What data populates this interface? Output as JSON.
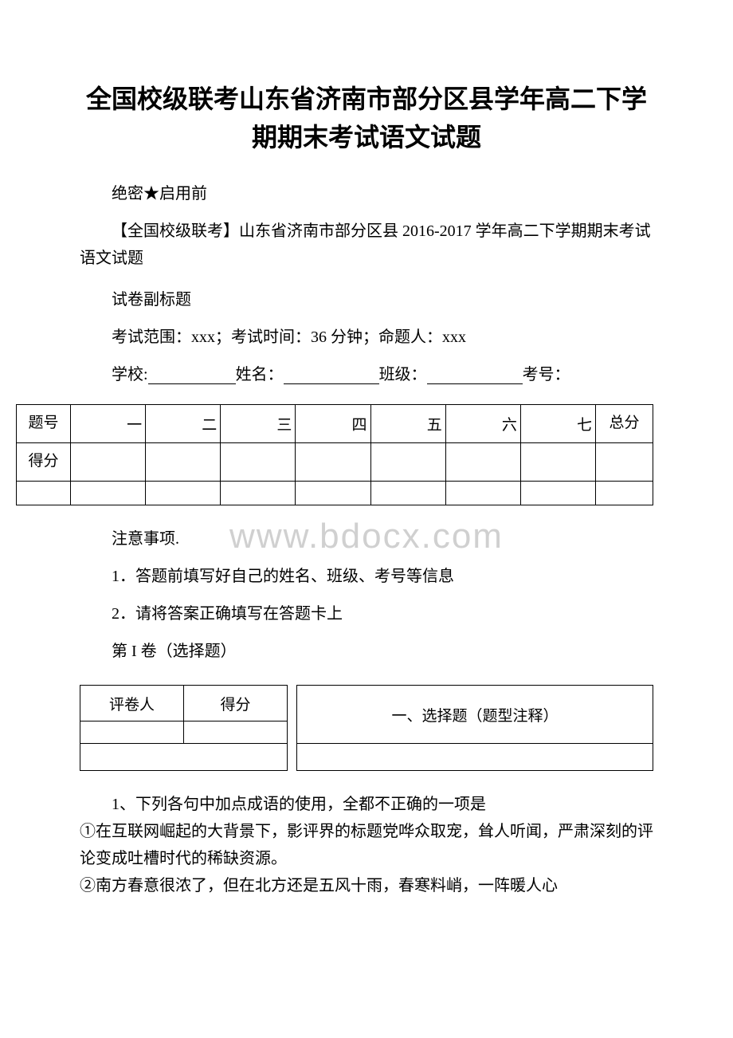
{
  "title": "全国校级联考山东省济南市部分区县学年高二下学期期末考试语文试题",
  "secret_label": "绝密★启用前",
  "subtitle": "【全国校级联考】山东省济南市部分区县 2016-2017 学年高二下学期期末考试语文试题",
  "sub_label": "试卷副标题",
  "exam_info": "考试范围：xxx；考试时间：36 分钟；命题人：xxx",
  "fill_fields": {
    "school_label": "学校:",
    "name_label": "姓名：",
    "class_label": "班级：",
    "exam_no_label": "考号："
  },
  "score_table": {
    "row1_label": "题号",
    "row2_label": "得分",
    "cols": [
      "一",
      "二",
      "三",
      "四",
      "五",
      "六",
      "七"
    ],
    "total_label": "总分"
  },
  "notice_title": "注意事项.",
  "notice_items": [
    "1．答题前填写好自己的姓名、班级、考号等信息",
    "2．请将答案正确填写在答题卡上"
  ],
  "section_label": "第 I 卷（选择题）",
  "section_table": {
    "grader_label": "评卷人",
    "score_label": "得分",
    "section_name": "一、选择题（题型注释）"
  },
  "question_intro": "1、下列各句中加点成语的使用，全都不正确的一项是",
  "question_items": [
    "①在互联网崛起的大背景下，影评界的标题党哗众取宠，耸人听闻，严肃深刻的评论变成吐槽时代的稀缺资源。",
    "②南方春意很浓了，但在北方还是五风十雨，春寒料峭，一阵暖人心"
  ],
  "watermark": "www.bdocx.com",
  "colors": {
    "text": "#000000",
    "background": "#ffffff",
    "watermark": "#d0d0d0",
    "border": "#000000"
  }
}
